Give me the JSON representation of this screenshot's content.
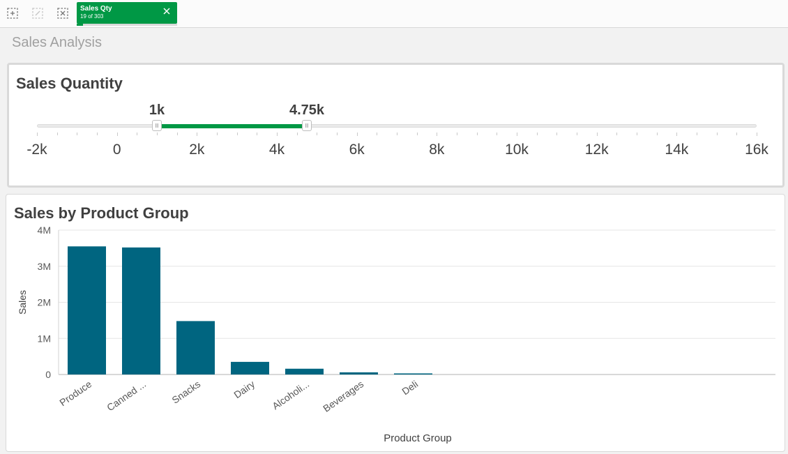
{
  "toolbar": {
    "icons": [
      "select-area-icon",
      "select-disabled-icon",
      "clear-selections-icon"
    ],
    "selection_chip": {
      "title": "Sales Qty",
      "subtitle": "19 of 303",
      "fill_fraction": 0.0627,
      "color": "#009845"
    }
  },
  "sheet": {
    "title": "Sales Analysis"
  },
  "slider_panel": {
    "title": "Sales Quantity",
    "range": {
      "min": -2000,
      "max": 16000
    },
    "selected": {
      "low": 1000,
      "high": 4750,
      "low_label": "1k",
      "high_label": "4.75k"
    },
    "major_ticks": [
      {
        "value": -2000,
        "label": "-2k"
      },
      {
        "value": 0,
        "label": "0"
      },
      {
        "value": 2000,
        "label": "2k"
      },
      {
        "value": 4000,
        "label": "4k"
      },
      {
        "value": 6000,
        "label": "6k"
      },
      {
        "value": 8000,
        "label": "8k"
      },
      {
        "value": 10000,
        "label": "10k"
      },
      {
        "value": 12000,
        "label": "12k"
      },
      {
        "value": 14000,
        "label": "14k"
      },
      {
        "value": 16000,
        "label": "16k"
      }
    ],
    "accent": "#009845"
  },
  "chart_panel": {
    "title": "Sales by Product Group"
  },
  "chart_data": {
    "type": "bar",
    "categories": [
      "Produce",
      "Canned ...",
      "Snacks",
      "Dairy",
      "Alcoholi...",
      "Beverages",
      "Deli"
    ],
    "values": [
      3550000,
      3520000,
      1480000,
      350000,
      160000,
      60000,
      30000
    ],
    "xlabel": "Product Group",
    "ylabel": "Sales",
    "ylim": [
      0,
      4000000
    ],
    "yticks": [
      {
        "value": 0,
        "label": "0"
      },
      {
        "value": 1000000,
        "label": "1M"
      },
      {
        "value": 2000000,
        "label": "2M"
      },
      {
        "value": 3000000,
        "label": "3M"
      },
      {
        "value": 4000000,
        "label": "4M"
      }
    ],
    "bar_color": "#006580",
    "grid": true
  }
}
